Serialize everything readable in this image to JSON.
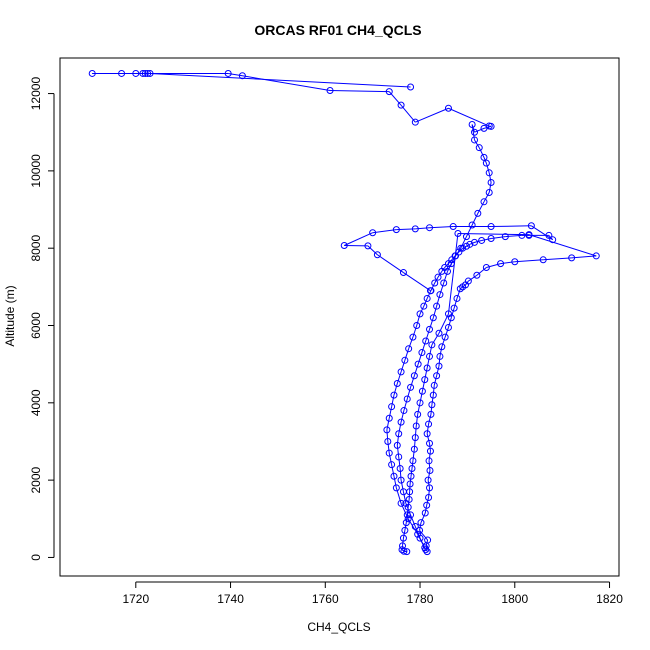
{
  "chart_data": {
    "type": "line",
    "title": "ORCAS RF01 CH4_QCLS",
    "xlabel": "CH4_QCLS",
    "ylabel": "Altitude (m)",
    "xlim": [
      1704,
      1822
    ],
    "ylim": [
      -480,
      12920
    ],
    "xticks": [
      1720,
      1740,
      1760,
      1780,
      1800,
      1820
    ],
    "xtick_labels": [
      "1720",
      "1740",
      "1760",
      "1780",
      "1800",
      "1820"
    ],
    "yticks": [
      0,
      2000,
      4000,
      6000,
      8000,
      10000,
      12000
    ],
    "ytick_labels": [
      "0",
      "2000",
      "4000",
      "6000",
      "8000",
      "10000",
      "12000"
    ],
    "grid": false,
    "line_style": "line with open circles",
    "color": "#0000ff",
    "series": [
      {
        "x": [
          1781.5,
          1781.3,
          1781.6,
          1779.9,
          1780.2,
          1781.1,
          1781.4,
          1781.8,
          1782.0,
          1781.7,
          1782.1,
          1781.9,
          1782.2,
          1782.0,
          1781.5,
          1781.8,
          1782.3,
          1782.5,
          1782.8,
          1783.0,
          1783.5,
          1784.0,
          1784.2,
          1784.6,
          1785.3,
          1786.0,
          1786.6,
          1787.2,
          1787.8,
          1788.5,
          1789.0,
          1789.6,
          1790.2,
          1792.0,
          1794.0,
          1797.0,
          1800.0,
          1806.0,
          1812.0,
          1817.2,
          1803.0,
          1788.0,
          1786.0,
          1784.0,
          1782.5,
          1782.0,
          1781.5,
          1781.0,
          1780.5,
          1780.0,
          1779.5,
          1779.2,
          1779.0,
          1778.8,
          1778.5,
          1778.3,
          1778.1,
          1777.9,
          1777.8,
          1777.7,
          1777.5,
          1777.3,
          1777.1,
          1776.8,
          1776.5,
          1776.3,
          1776.2,
          1776.6,
          1777.2
        ],
        "y": [
          150,
          300,
          450,
          700,
          900,
          1150,
          1350,
          1550,
          1800,
          2000,
          2250,
          2500,
          2750,
          2950,
          3200,
          3450,
          3700,
          3950,
          4200,
          4450,
          4700,
          4950,
          5200,
          5450,
          5700,
          5950,
          6200,
          6450,
          6700,
          6950,
          7000,
          7050,
          7150,
          7300,
          7500,
          7600,
          7650,
          7700,
          7750,
          7800,
          8350,
          8380,
          6300,
          5800,
          5500,
          5200,
          4900,
          4600,
          4300,
          4000,
          3700,
          3400,
          3100,
          2800,
          2500,
          2300,
          2100,
          1900,
          1700,
          1500,
          1300,
          1100,
          900,
          700,
          500,
          300,
          200,
          160,
          150
        ]
      },
      {
        "x": [
          1781.2,
          1779.5,
          1777.5,
          1776.0,
          1775.0,
          1774.5,
          1774.0,
          1773.5,
          1773.2,
          1773.0,
          1773.5,
          1774.0,
          1774.5,
          1775.2,
          1776.0,
          1776.8,
          1777.6,
          1778.5,
          1779.3,
          1780.0,
          1780.8,
          1781.5,
          1782.3,
          1783.1,
          1783.8,
          1784.6,
          1785.2,
          1786.0,
          1786.7,
          1787.4,
          1788.2,
          1789.0,
          1789.8,
          1790.5,
          1791.5,
          1793.0,
          1795.0,
          1798.0,
          1801.5,
          1803.0,
          1807.2,
          1808.0,
          1803.5,
          1795.0,
          1787.0,
          1782.0,
          1779.0,
          1775.0,
          1770.0,
          1764.0,
          1769.0,
          1771.0,
          1776.5,
          1782.2
        ],
        "y": [
          200,
          600,
          1000,
          1400,
          1800,
          2100,
          2400,
          2700,
          3000,
          3300,
          3600,
          3900,
          4200,
          4500,
          4800,
          5100,
          5400,
          5700,
          6000,
          6300,
          6500,
          6700,
          6900,
          7100,
          7250,
          7400,
          7500,
          7600,
          7700,
          7800,
          7900,
          8000,
          8050,
          8100,
          8150,
          8200,
          8250,
          8300,
          8330,
          8330,
          8330,
          8220,
          8580,
          8560,
          8560,
          8530,
          8500,
          8480,
          8400,
          8070,
          8060,
          7830,
          7370,
          6900
        ]
      },
      {
        "x": [
          1781.0,
          1780.0,
          1779.0,
          1778.0,
          1777.0,
          1776.5,
          1776.0,
          1775.8,
          1775.5,
          1775.2,
          1775.5,
          1776.0,
          1776.6,
          1777.3,
          1778.0,
          1778.8,
          1779.6,
          1780.4,
          1781.2,
          1782.0,
          1782.8,
          1783.5,
          1784.2,
          1785.0,
          1785.8,
          1786.6,
          1787.5,
          1788.6,
          1789.8,
          1791.0,
          1792.2,
          1793.5,
          1794.6,
          1795.0,
          1794.6,
          1794.0,
          1793.5,
          1792.5,
          1791.5,
          1791.0,
          1791.5,
          1793.5,
          1795.0,
          1794.6,
          1786.0,
          1779.0,
          1776.0,
          1773.5,
          1761.0,
          1742.5,
          1739.5,
          1722.5,
          1721.5,
          1717.0,
          1710.8,
          1720.0,
          1722.0,
          1723.0,
          1778.0
        ],
        "y": [
          250,
          500,
          800,
          1100,
          1400,
          1700,
          2000,
          2300,
          2600,
          2900,
          3200,
          3500,
          3800,
          4100,
          4400,
          4700,
          5000,
          5300,
          5600,
          5900,
          6200,
          6500,
          6800,
          7100,
          7400,
          7600,
          7800,
          8000,
          8300,
          8600,
          8900,
          9200,
          9440,
          9700,
          9950,
          10200,
          10350,
          10600,
          10800,
          11200,
          11000,
          11100,
          11150,
          11160,
          11620,
          11260,
          11700,
          12050,
          12080,
          12460,
          12520,
          12520,
          12520,
          12520,
          12520,
          12520,
          12520,
          12520,
          12170
        ]
      }
    ]
  }
}
